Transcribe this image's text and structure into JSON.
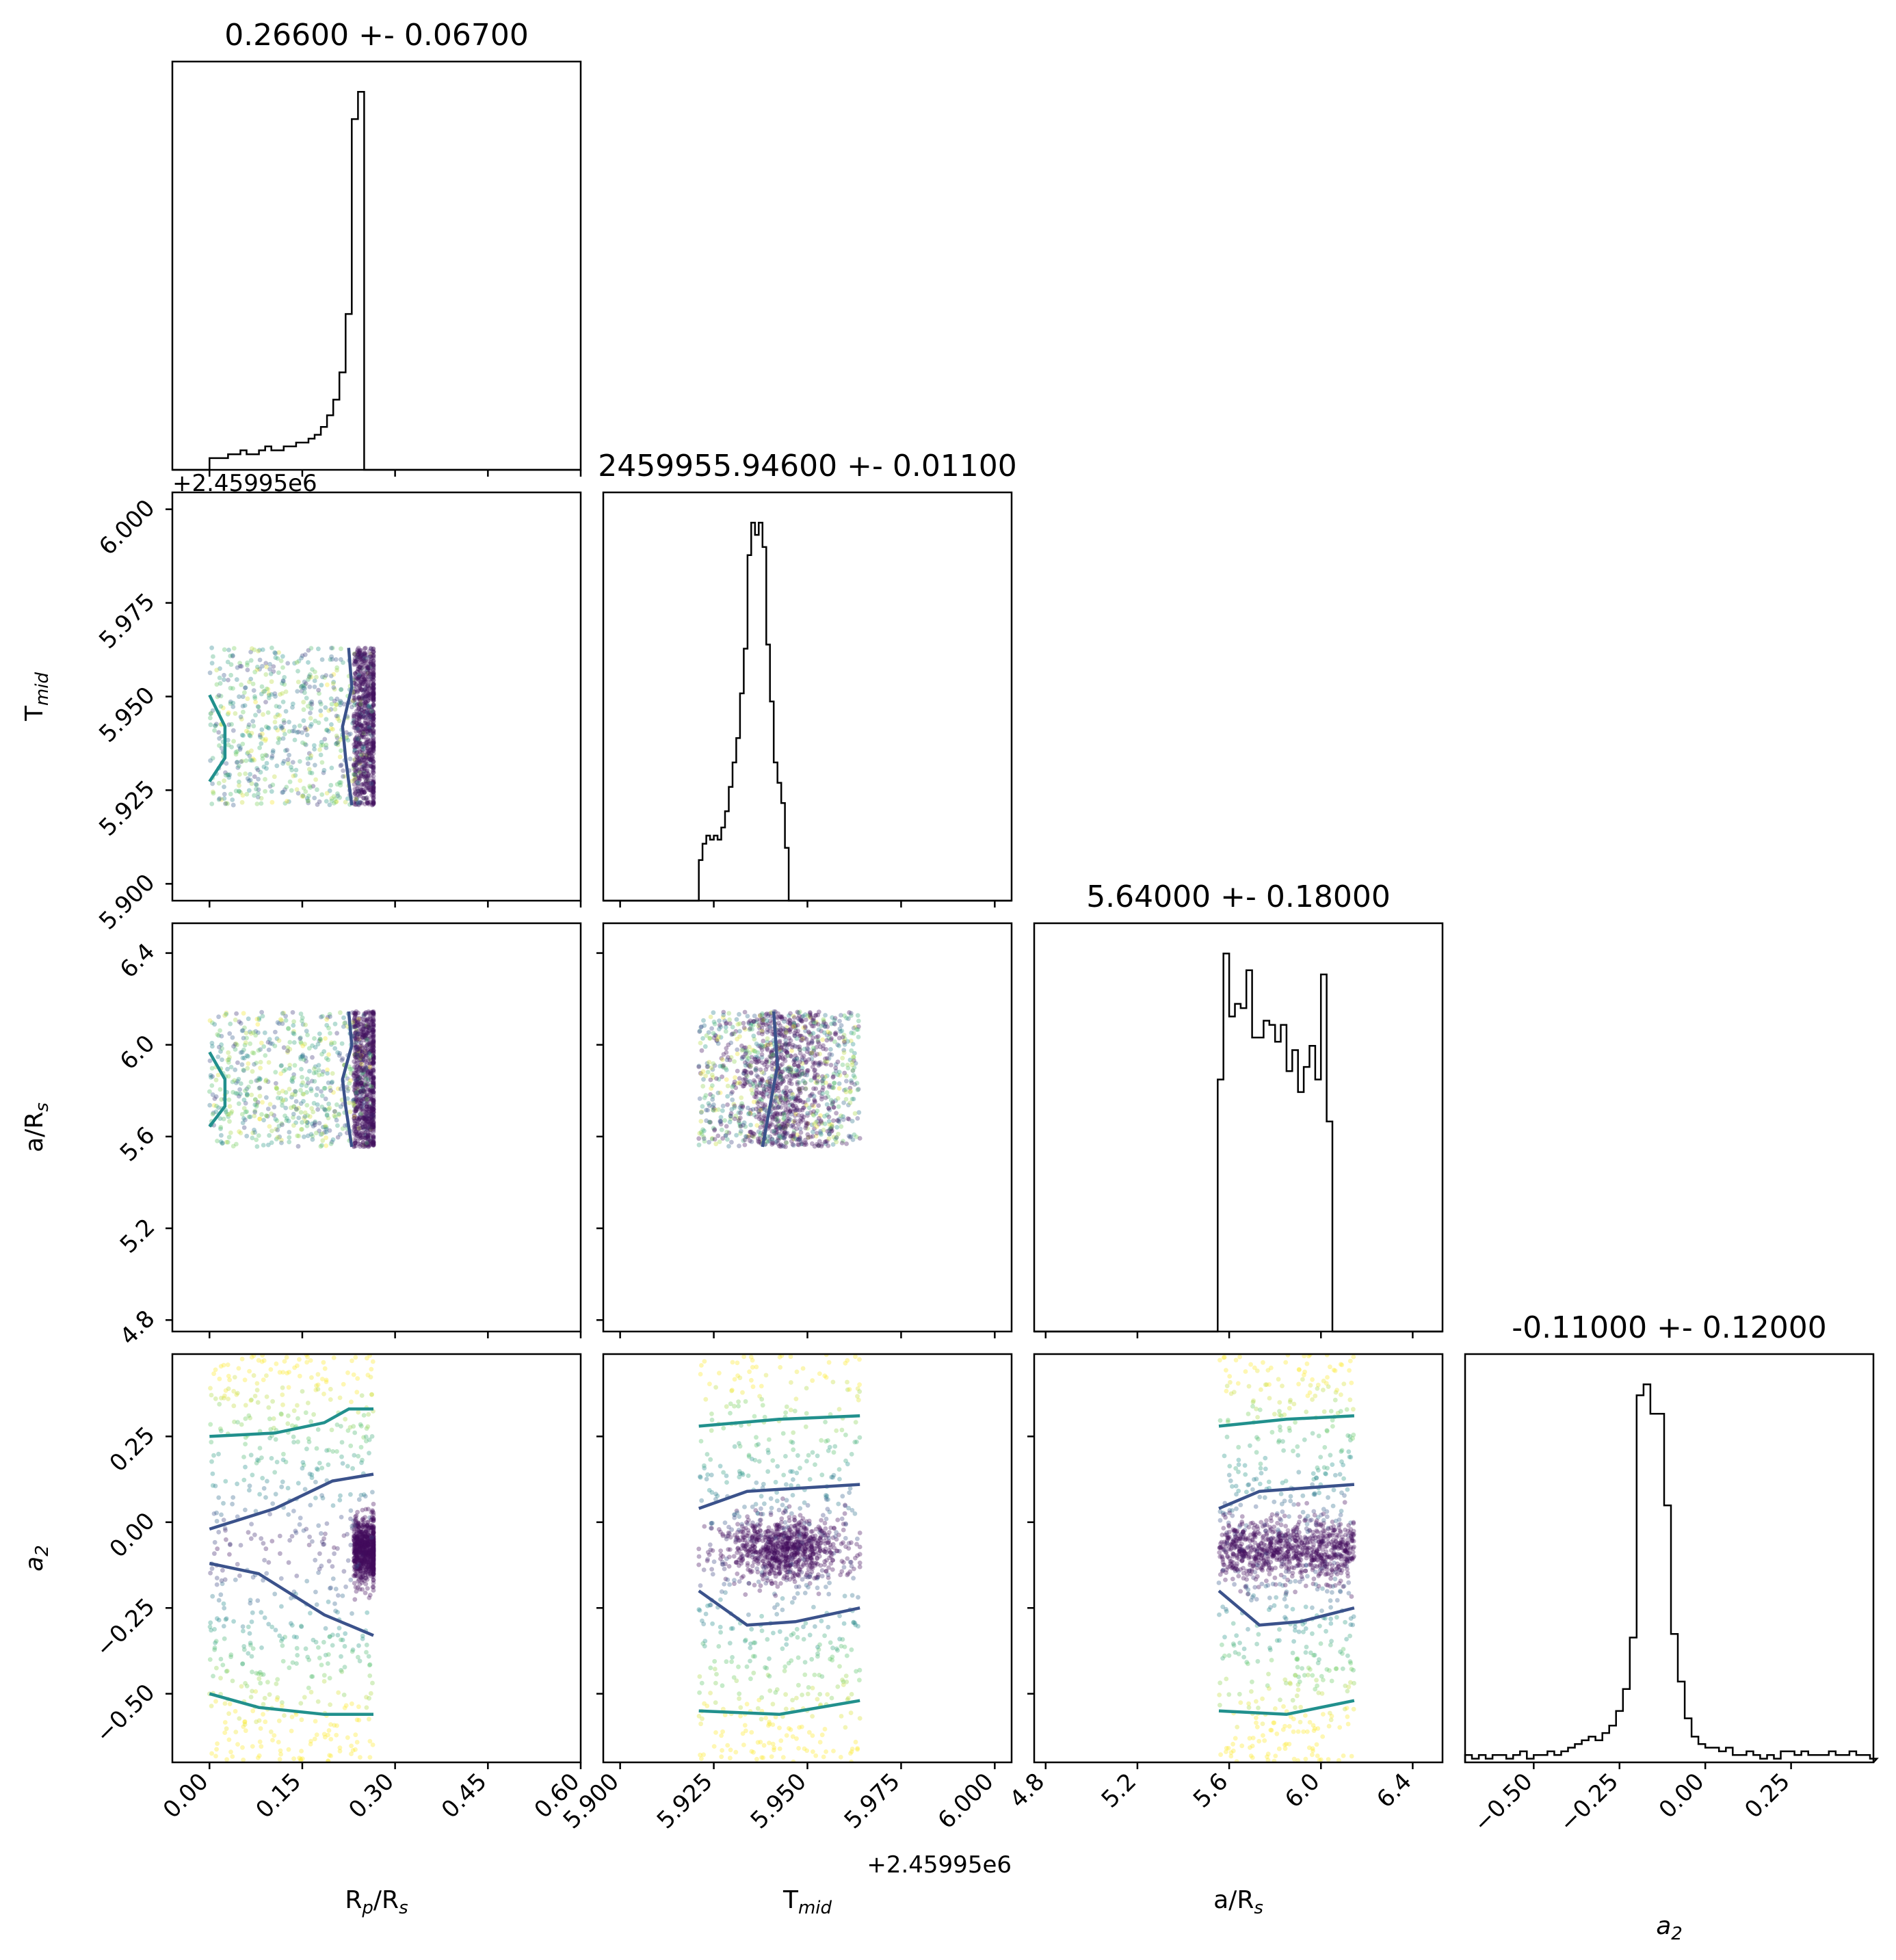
{
  "chart_data": {
    "type": "corner",
    "parameters": [
      {
        "label": "R",
        "sub": "p",
        "label2": "/R",
        "sub2": "s",
        "title": "0.26600 +- 0.06700",
        "lim": [
          -0.06,
          0.6
        ],
        "ticks": [
          0.0,
          0.15,
          0.3,
          0.45,
          0.6
        ],
        "tick_labels": [
          "0.00",
          "0.15",
          "0.30",
          "0.45",
          "0.60"
        ],
        "offset": "",
        "offset_y": "+2.45995e6"
      },
      {
        "label": "T",
        "sub": "mid",
        "label2": "",
        "sub2": "",
        "title": "2459955.94600 +- 0.01100",
        "lim": [
          5.8955,
          6.0045
        ],
        "ticks": [
          5.9,
          5.925,
          5.95,
          5.975,
          6.0
        ],
        "tick_labels": [
          "5.900",
          "5.925",
          "5.950",
          "5.975",
          "6.000"
        ],
        "offset": "+2.45995e6"
      },
      {
        "label": "a/R",
        "sub": "s",
        "label2": "",
        "sub2": "",
        "title": "5.64000 +- 0.18000",
        "lim": [
          4.75,
          6.53
        ],
        "ticks": [
          4.8,
          5.2,
          5.6,
          6.0,
          6.4
        ],
        "tick_labels": [
          "4.8",
          "5.2",
          "5.6",
          "6.0",
          "6.4"
        ],
        "offset": ""
      },
      {
        "label": "a",
        "sub": "2",
        "label2": "",
        "sub2": "",
        "italic": true,
        "title": "-0.11000 +- 0.12000",
        "lim": [
          -0.7,
          0.49
        ],
        "ticks": [
          -0.5,
          -0.25,
          0.0,
          0.25
        ],
        "tick_labels": [
          "−0.50",
          "−0.25",
          "0.00",
          "0.25"
        ],
        "offset": ""
      }
    ],
    "histograms": [
      {
        "param": 0,
        "edges_start": 0.0,
        "bin_width": 0.01,
        "counts": [
          3,
          3,
          3,
          4,
          4,
          5,
          4,
          4,
          5,
          6,
          5,
          5,
          6,
          6,
          7,
          7,
          8,
          9,
          11,
          14,
          18,
          25,
          40,
          90,
          97,
          0
        ]
      },
      {
        "param": 1,
        "edges_start": 5.921,
        "bin_width": 0.001,
        "counts": [
          10,
          14,
          16,
          15,
          16,
          15,
          18,
          22,
          28,
          34,
          40,
          51,
          62,
          85,
          93,
          90,
          93,
          87,
          63,
          49,
          34,
          29,
          24,
          13,
          0
        ]
      },
      {
        "param": 2,
        "edges_start": 5.55,
        "bin_width": 0.025,
        "counts": [
          60,
          90,
          75,
          78,
          77,
          86,
          70,
          70,
          74,
          73,
          69,
          73,
          62,
          67,
          57,
          63,
          68,
          60,
          85,
          50,
          0
        ]
      },
      {
        "param": 3,
        "edges_start": -0.7,
        "bin_width": 0.02,
        "counts": [
          2,
          1,
          2,
          1,
          2,
          2,
          1,
          2,
          3,
          1,
          2,
          2,
          3,
          2,
          3,
          4,
          5,
          6,
          7,
          6,
          8,
          10,
          14,
          20,
          34,
          100,
          103,
          95,
          95,
          70,
          35,
          22,
          12,
          7,
          5,
          4,
          4,
          3,
          4,
          2,
          2,
          3,
          2,
          1,
          2,
          1,
          3,
          3,
          2,
          3,
          2,
          2,
          2,
          3,
          2,
          2,
          3,
          2,
          2,
          1
        ]
      }
    ],
    "scatter_panels": [
      {
        "x": 0,
        "y": 1,
        "x_range": [
          0.0,
          0.265
        ],
        "y_range": [
          5.921,
          5.963
        ],
        "dense_x": 0.245
      },
      {
        "x": 0,
        "y": 2,
        "x_range": [
          0.0,
          0.265
        ],
        "y_range": [
          5.555,
          6.145
        ],
        "dense_x": 0.245
      },
      {
        "x": 1,
        "y": 2,
        "x_range": [
          5.921,
          5.964
        ],
        "y_range": [
          5.555,
          6.145
        ],
        "dense_x": 5.944
      },
      {
        "x": 0,
        "y": 3,
        "x_range": [
          0.0,
          0.265
        ],
        "y_range": [
          -0.7,
          0.49
        ],
        "dense_x": 0.245
      },
      {
        "x": 1,
        "y": 3,
        "x_range": [
          5.921,
          5.964
        ],
        "y_range": [
          -0.7,
          0.49
        ],
        "dense_x": 5.944
      },
      {
        "x": 2,
        "y": 3,
        "x_range": [
          5.555,
          6.145
        ],
        "y_range": [
          -0.7,
          0.49
        ],
        "dense_x": 5.85
      }
    ],
    "colormap": "viridis",
    "contour_colors": {
      "inner": "#3b528b",
      "outer": "#21908d"
    }
  }
}
